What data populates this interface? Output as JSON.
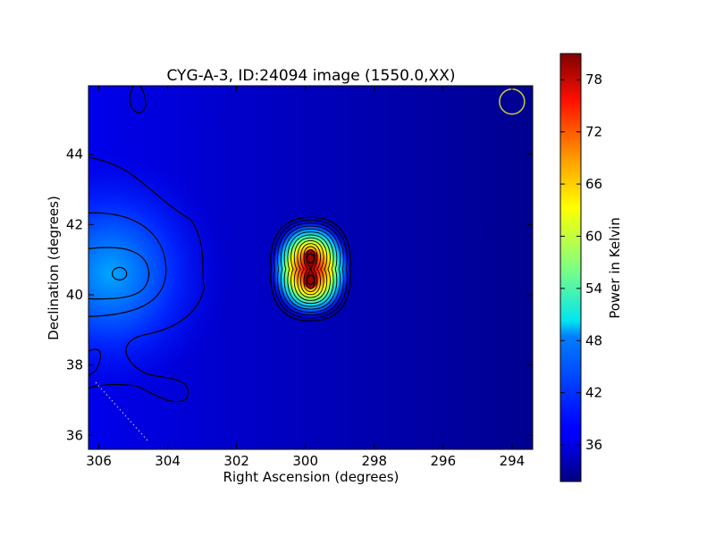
{
  "chart_data": {
    "type": "heatmap",
    "title": "CYG-A-3, ID:24094 image (1550.0,XX)",
    "xlabel": "Right Ascension (degrees)",
    "ylabel": "Declination (degrees)",
    "xlim": [
      306.3,
      293.4
    ],
    "ylim": [
      35.6,
      45.95
    ],
    "x_ticks": [
      306,
      304,
      302,
      300,
      298,
      296,
      294
    ],
    "y_ticks": [
      36,
      38,
      40,
      42,
      44
    ],
    "colorbar": {
      "label": "Power in Kelvin",
      "range": [
        31.8,
        81.0
      ],
      "ticks": [
        36,
        42,
        48,
        54,
        60,
        66,
        72,
        78
      ],
      "colormap": "jet"
    },
    "sources": [
      {
        "name": "",
        "ra": 299.85,
        "dec": 40.73,
        "peak": 80.5
      },
      {
        "name": "",
        "ra": 305.4,
        "dec": 40.6,
        "peak": 45
      }
    ],
    "beam_marker": {
      "ra": 294.0,
      "dec": 45.5,
      "color": "#cccc33"
    },
    "background_level": 33,
    "grid": false
  }
}
